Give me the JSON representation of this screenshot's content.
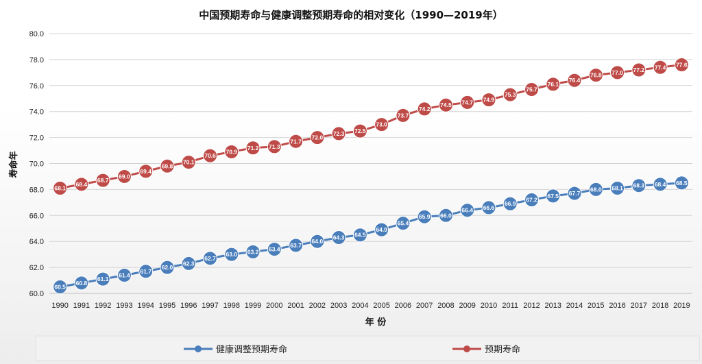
{
  "chart_data": {
    "type": "line",
    "title": "中国预期寿命与健康调整预期寿命的相对变化（1990—2019年）",
    "xlabel": "年 份",
    "ylabel": "寿命年",
    "ylim": [
      60.0,
      80.0
    ],
    "y_ticks": [
      "60.0",
      "62.0",
      "64.0",
      "66.0",
      "68.0",
      "70.0",
      "72.0",
      "74.0",
      "76.0",
      "78.0",
      "80.0"
    ],
    "grid": true,
    "legend_position": "bottom",
    "categories": [
      "1990",
      "1991",
      "1992",
      "1993",
      "1994",
      "1995",
      "1996",
      "1997",
      "1998",
      "1999",
      "2000",
      "2001",
      "2002",
      "2003",
      "2004",
      "2005",
      "2006",
      "2007",
      "2008",
      "2009",
      "2010",
      "2011",
      "2012",
      "2013",
      "2014",
      "2015",
      "2016",
      "2017",
      "2018",
      "2019"
    ],
    "series": [
      {
        "name": "健康调整预期寿命",
        "color": "#4a7ebb",
        "values": [
          60.5,
          60.8,
          61.1,
          61.4,
          61.7,
          62.0,
          62.3,
          62.7,
          63.0,
          63.2,
          63.4,
          63.7,
          64.0,
          64.3,
          64.5,
          64.9,
          65.4,
          65.9,
          66.0,
          66.4,
          66.6,
          66.9,
          67.2,
          67.5,
          67.7,
          68.0,
          68.1,
          68.3,
          68.4,
          68.5
        ],
        "labels": [
          "60.5",
          "60.8",
          "61.1",
          "61.4",
          "61.7",
          "62.0",
          "62.3",
          "62.7",
          "63.0",
          "63.2",
          "63.4",
          "63.7",
          "64.0",
          "64.3",
          "64.5",
          "64.9",
          "65.4",
          "65.9",
          "66.0",
          "66.4",
          "66.6",
          "66.9",
          "67.2",
          "67.5",
          "67.7",
          "68.0",
          "68.1",
          "68.3",
          "68.4",
          "68.5"
        ]
      },
      {
        "name": "预期寿命",
        "color": "#be4b48",
        "values": [
          68.1,
          68.4,
          68.7,
          69.0,
          69.4,
          69.8,
          70.1,
          70.6,
          70.9,
          71.2,
          71.3,
          71.7,
          72.0,
          72.3,
          72.5,
          73.0,
          73.7,
          74.2,
          74.5,
          74.7,
          74.9,
          75.3,
          75.7,
          76.1,
          76.4,
          76.8,
          77.0,
          77.2,
          77.4,
          77.6
        ],
        "labels": [
          "68.1",
          "68.4",
          "68.7",
          "69.0",
          "69.4",
          "69.8",
          "70.1",
          "70.6",
          "70.9",
          "71.2",
          "71.3",
          "71.7",
          "72.0",
          "72.3",
          "72.5",
          "73.0",
          "73.7",
          "74.2",
          "74.5",
          "74.7",
          "74.9",
          "75.3",
          "75.7",
          "76.1",
          "76.4",
          "76.8",
          "77.0",
          "77.2",
          "77.4",
          "77.6"
        ]
      }
    ]
  }
}
